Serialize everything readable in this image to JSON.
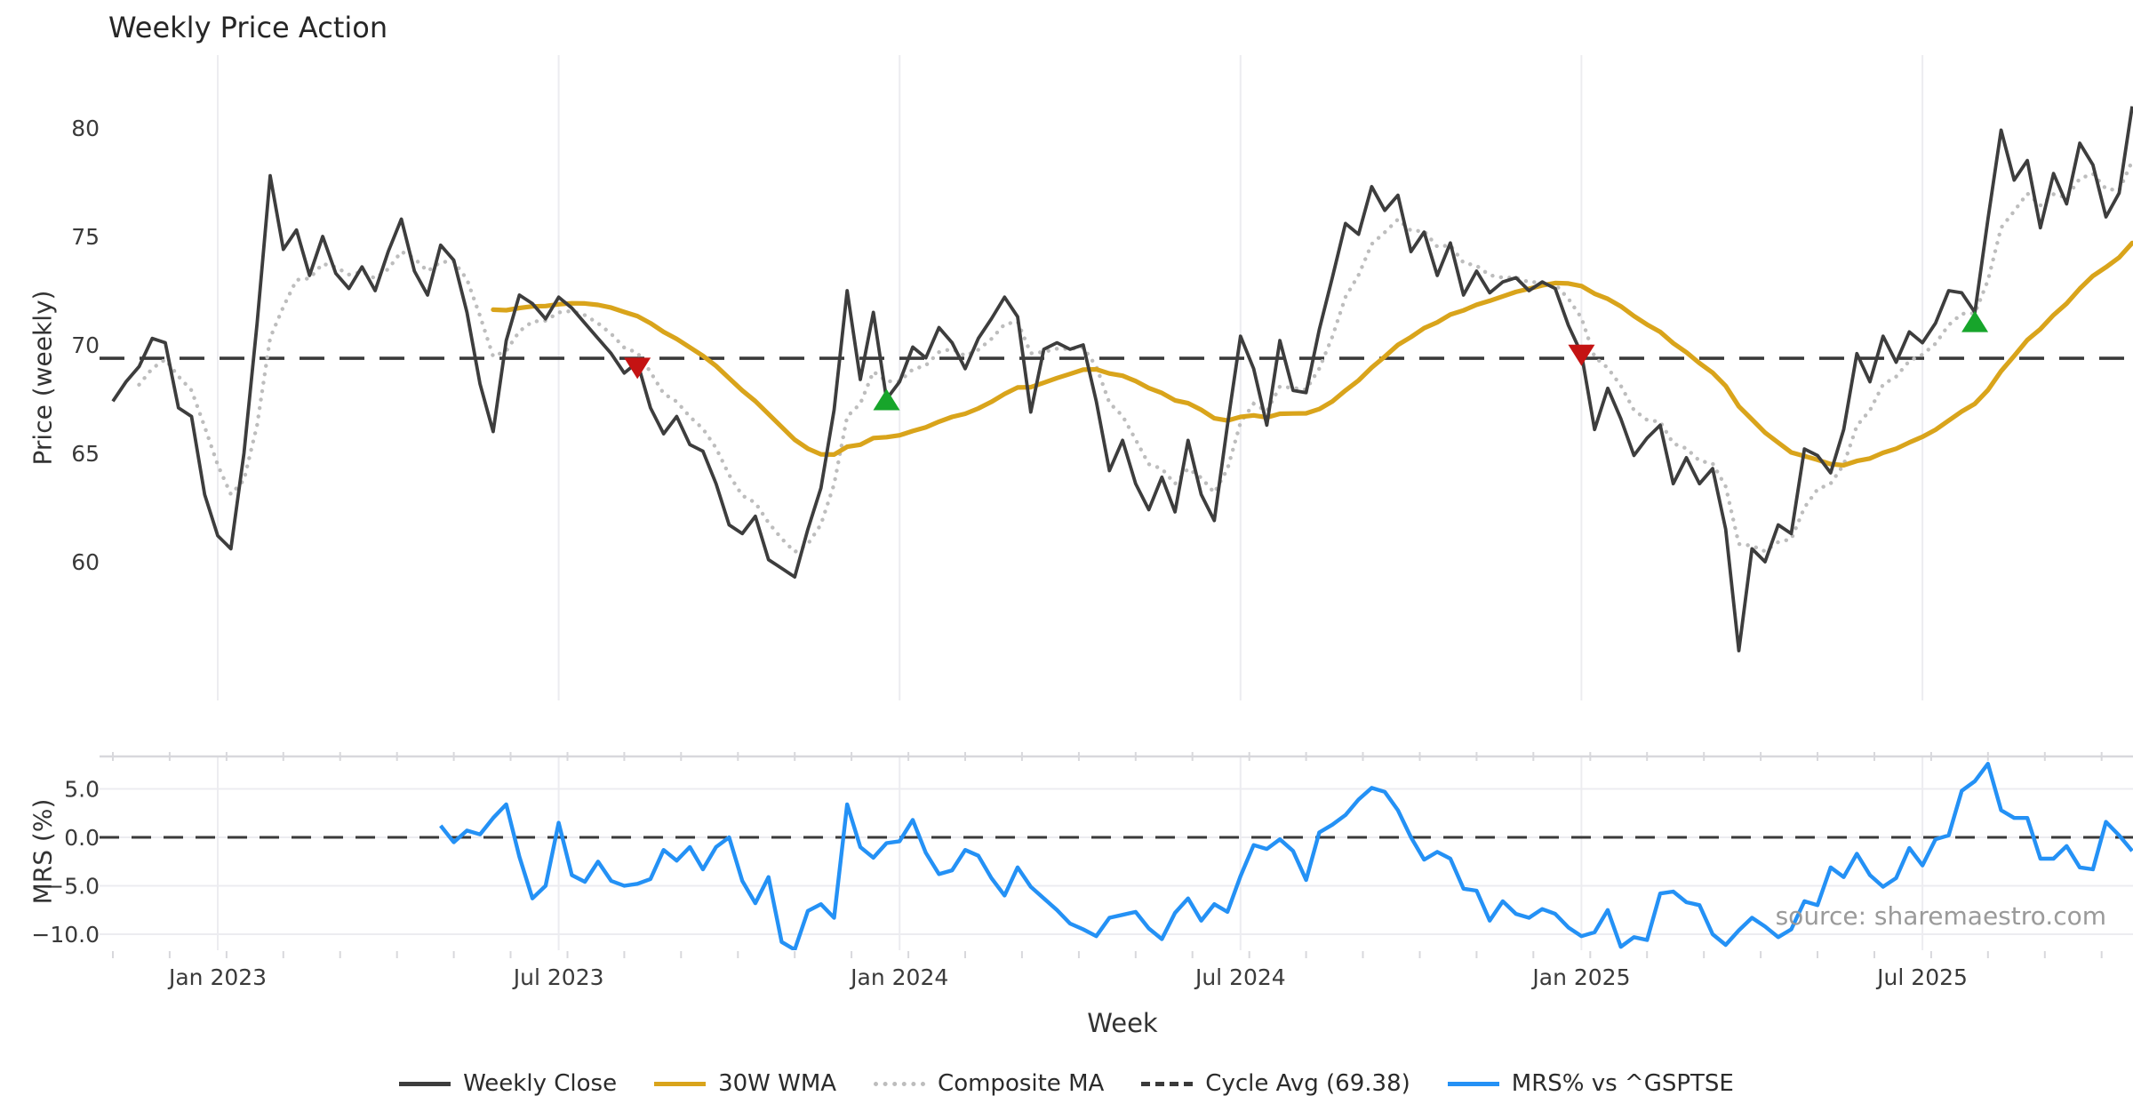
{
  "title": "Weekly Price Action",
  "source": "source: sharemaestro.com",
  "colors": {
    "close": "#3d3d3d",
    "wma": "#d9a41b",
    "composite": "#bdbdbd",
    "cycle": "#3a3a3a",
    "mrs": "#2491f5",
    "sell": "#c41313",
    "buy": "#17a52b",
    "grid": "#ececf0",
    "panel_border": "#d8d8dc",
    "tick_text": "#3a3a3a"
  },
  "legend": {
    "items": [
      {
        "label": "Weekly Close",
        "line": "solid",
        "color_key": "close"
      },
      {
        "label": "30W WMA",
        "line": "solid",
        "color_key": "wma"
      },
      {
        "label": "Composite MA",
        "line": "dotted",
        "color_key": "composite"
      },
      {
        "label": "Cycle Avg (69.38)",
        "line": "dashed",
        "color_key": "cycle"
      },
      {
        "label": "MRS% vs ^GSPTSE",
        "line": "solid",
        "color_key": "mrs"
      }
    ]
  },
  "chart_data": [
    {
      "type": "line",
      "panel": "price",
      "title": "Weekly Price Action",
      "ylabel": "Price (weekly)",
      "xlabel": "Week",
      "grid": "vertical-only",
      "legend_position": "bottom-center",
      "ylim": [
        53.6,
        83.4
      ],
      "yticks": [
        {
          "value": 80,
          "label": "80"
        },
        {
          "value": 75,
          "label": "75"
        },
        {
          "value": 70,
          "label": "70"
        },
        {
          "value": 65,
          "label": "65"
        },
        {
          "value": 60,
          "label": "60"
        }
      ],
      "xticks": [
        {
          "week": 8,
          "label": "Jan 2023"
        },
        {
          "week": 34,
          "label": "Jul 2023"
        },
        {
          "week": 60,
          "label": "Jan 2024"
        },
        {
          "week": 86,
          "label": "Jul 2024"
        },
        {
          "week": 112,
          "label": "Jan 2025"
        },
        {
          "week": 138,
          "label": "Jul 2025"
        }
      ],
      "cycle_avg": 69.38,
      "series": [
        {
          "name": "Weekly Close",
          "start_week": 0,
          "values": [
            67.4,
            68.3,
            69.0,
            70.3,
            70.1,
            67.1,
            66.7,
            63.1,
            61.2,
            60.6,
            65.0,
            71.0,
            77.8,
            74.4,
            75.3,
            73.2,
            75.0,
            73.3,
            72.6,
            73.6,
            72.5,
            74.3,
            75.8,
            73.4,
            72.3,
            74.6,
            73.9,
            71.5,
            68.2,
            66.0,
            70.2,
            72.3,
            71.9,
            71.2,
            72.2,
            71.7,
            71.0,
            70.3,
            69.6,
            68.7,
            69.2,
            67.1,
            65.9,
            66.7,
            65.4,
            65.1,
            63.6,
            61.7,
            61.3,
            62.1,
            60.1,
            59.7,
            59.3,
            61.5,
            63.4,
            67.0,
            72.5,
            68.4,
            71.5,
            67.5,
            68.3,
            69.9,
            69.4,
            70.8,
            70.1,
            68.9,
            70.3,
            71.2,
            72.2,
            71.3,
            66.9,
            69.8,
            70.1,
            69.8,
            70.0,
            67.4,
            64.2,
            65.6,
            63.6,
            62.4,
            63.9,
            62.3,
            65.6,
            63.1,
            61.9,
            66.3,
            70.4,
            68.9,
            66.3,
            70.2,
            67.9,
            67.8,
            70.7,
            73.1,
            75.6,
            75.1,
            77.3,
            76.2,
            76.9,
            74.3,
            75.2,
            73.2,
            74.7,
            72.3,
            73.4,
            72.4,
            72.9,
            73.1,
            72.5,
            72.9,
            72.6,
            70.9,
            69.6,
            66.1,
            68.0,
            66.6,
            64.9,
            65.7,
            66.3,
            63.6,
            64.8,
            63.6,
            64.3,
            61.5,
            55.9,
            60.6,
            60.0,
            61.7,
            61.3,
            65.2,
            64.9,
            64.1,
            66.1,
            69.6,
            68.3,
            70.4,
            69.2,
            70.6,
            70.1,
            71.0,
            72.5,
            72.4,
            71.5,
            75.8,
            79.9,
            77.6,
            78.5,
            75.4,
            77.9,
            76.5,
            79.3,
            78.3,
            75.9,
            77.0,
            81.0
          ]
        },
        {
          "name": "30W WMA",
          "derived": "weighted_ma_of_close",
          "window": 30
        },
        {
          "name": "Composite MA",
          "derived": "ema_of_close",
          "alpha": 0.35,
          "start_week": 2
        },
        {
          "name": "Cycle Avg (69.38)",
          "derived": "hline",
          "value": 69.38
        }
      ],
      "signals": {
        "sell": [
          {
            "week": 40,
            "value": 69.0
          },
          {
            "week": 112,
            "value": 69.6
          }
        ],
        "buy": [
          {
            "week": 59,
            "value": 67.4
          },
          {
            "week": 142,
            "value": 71.0
          }
        ]
      }
    },
    {
      "type": "line",
      "panel": "mrs",
      "ylabel": "MRS (%)",
      "grid": "both",
      "ylim": [
        -12.4,
        8.3
      ],
      "zero_line": 0.0,
      "yticks": [
        {
          "value": 5,
          "label": "5.0"
        },
        {
          "value": 0,
          "label": "0.0"
        },
        {
          "value": -5,
          "label": "−5.0"
        },
        {
          "value": -10,
          "label": "−10.0"
        }
      ],
      "series": [
        {
          "name": "MRS% vs ^GSPTSE",
          "start_week": 25,
          "values": [
            1.2,
            -0.5,
            0.7,
            0.3,
            2.0,
            3.4,
            -2.0,
            -6.3,
            -5.0,
            1.5,
            -3.9,
            -4.6,
            -2.5,
            -4.5,
            -5.0,
            -4.8,
            -4.3,
            -1.3,
            -2.4,
            -1.0,
            -3.3,
            -1.0,
            0.0,
            -4.5,
            -6.8,
            -4.1,
            -10.8,
            -11.6,
            -7.6,
            -6.9,
            -8.3,
            3.4,
            -1.0,
            -2.1,
            -0.6,
            -0.4,
            1.8,
            -1.6,
            -3.8,
            -3.4,
            -1.3,
            -1.9,
            -4.2,
            -6.0,
            -3.1,
            -5.1,
            -6.3,
            -7.5,
            -8.9,
            -9.5,
            -10.2,
            -8.3,
            -8.0,
            -7.7,
            -9.4,
            -10.5,
            -7.8,
            -6.3,
            -8.6,
            -6.9,
            -7.7,
            -4.0,
            -0.8,
            -1.2,
            -0.2,
            -1.4,
            -4.4,
            0.5,
            1.3,
            2.3,
            3.9,
            5.1,
            4.7,
            2.8,
            0.0,
            -2.3,
            -1.5,
            -2.2,
            -5.3,
            -5.5,
            -8.6,
            -6.6,
            -7.9,
            -8.3,
            -7.4,
            -7.9,
            -9.3,
            -10.2,
            -9.8,
            -7.5,
            -11.3,
            -10.3,
            -10.6,
            -5.8,
            -5.6,
            -6.7,
            -7.0,
            -10.0,
            -11.1,
            -9.6,
            -8.3,
            -9.2,
            -10.3,
            -9.5,
            -6.6,
            -7.0,
            -3.1,
            -4.1,
            -1.7,
            -3.9,
            -5.1,
            -4.2,
            -1.1,
            -2.9,
            -0.2,
            0.2,
            4.8,
            5.8,
            7.6,
            2.8,
            2.0,
            2.0,
            -2.2,
            -2.2,
            -0.9,
            -3.1,
            -3.3,
            1.6,
            0.2,
            -1.4
          ]
        }
      ]
    }
  ]
}
